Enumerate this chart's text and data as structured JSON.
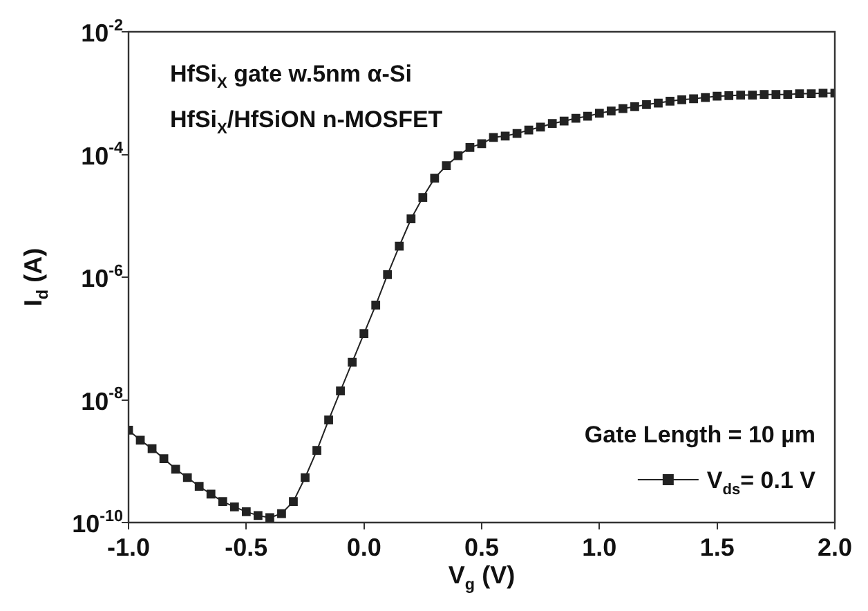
{
  "chart_data": {
    "type": "line",
    "xlabel": "V$_{g}$ (V)",
    "ylabel": "I$_{d}$ (A)",
    "legend_title": "Gate Length = 10 µm",
    "legend": "bottom right",
    "log": "y",
    "grid": false,
    "marker": "square",
    "line_style": "solid",
    "annotations": [
      "HfSi$_{X}$ gate w.5nm α-Si",
      "HfSi$_{X}$/HfSiON n-MOSFET"
    ],
    "xlim": [
      -1,
      2
    ],
    "xticks": [
      {
        "value": -1,
        "label": "-1.0"
      },
      {
        "value": -0.5,
        "label": "-0.5"
      },
      {
        "value": 0,
        "label": "0.0"
      },
      {
        "value": 0.5,
        "label": "0.5"
      },
      {
        "value": 1,
        "label": "1.0"
      },
      {
        "value": 1.5,
        "label": "1.5"
      },
      {
        "value": 2,
        "label": "2.0"
      }
    ],
    "ylim": [
      1e-10,
      0.01
    ],
    "yticks": [
      {
        "value": 1e-10,
        "label": "10$^{-10}$"
      },
      {
        "value": 1e-08,
        "label": "10$^{-8}$"
      },
      {
        "value": 1e-06,
        "label": "10$^{-6}$"
      },
      {
        "value": 0.0001,
        "label": "10$^{-4}$"
      },
      {
        "value": 0.01,
        "label": "10$^{-2}$"
      }
    ],
    "x": [
      -1,
      -0.95,
      -0.9,
      -0.85,
      -0.8,
      -0.75,
      -0.7,
      -0.65,
      -0.6,
      -0.55,
      -0.5,
      -0.45,
      -0.4,
      -0.35,
      -0.3,
      -0.25,
      -0.2,
      -0.15,
      -0.1,
      -0.05,
      0,
      0.05,
      0.1,
      0.15,
      0.2,
      0.25,
      0.3,
      0.35,
      0.4,
      0.45,
      0.5,
      0.55,
      0.6,
      0.65,
      0.7,
      0.75,
      0.8,
      0.85,
      0.9,
      0.95,
      1,
      1.05,
      1.1,
      1.15,
      1.2,
      1.25,
      1.3,
      1.35,
      1.4,
      1.45,
      1.5,
      1.55,
      1.6,
      1.65,
      1.7,
      1.75,
      1.8,
      1.85,
      1.9,
      1.95,
      2
    ],
    "series": [
      {
        "name": "V$_{ds}$= 0.1 V",
        "color": "#222222",
        "values": [
          3.2e-09,
          2.2e-09,
          1.6e-09,
          1.1e-09,
          7.4e-10,
          5.4e-10,
          3.9e-10,
          2.9e-10,
          2.2e-10,
          1.8e-10,
          1.5e-10,
          1.3e-10,
          1.2e-10,
          1.4e-10,
          2.2e-10,
          5.4e-10,
          1.5e-09,
          4.7e-09,
          1.4e-08,
          4.1e-08,
          1.2e-07,
          3.5e-07,
          1.1e-06,
          3.2e-06,
          8.9e-06,
          2e-05,
          4.1e-05,
          6.6e-05,
          9.5e-05,
          0.00013,
          0.00015,
          0.00019,
          0.0002,
          0.00022,
          0.00025,
          0.00028,
          0.00032,
          0.00035,
          0.00039,
          0.00042,
          0.00047,
          0.00051,
          0.00056,
          0.0006,
          0.00065,
          0.00069,
          0.00074,
          0.00078,
          0.00081,
          0.00085,
          0.00089,
          0.00091,
          0.00093,
          0.00093,
          0.00095,
          0.00095,
          0.00095,
          0.00098,
          0.00098,
          0.001,
          0.001
        ]
      }
    ]
  }
}
